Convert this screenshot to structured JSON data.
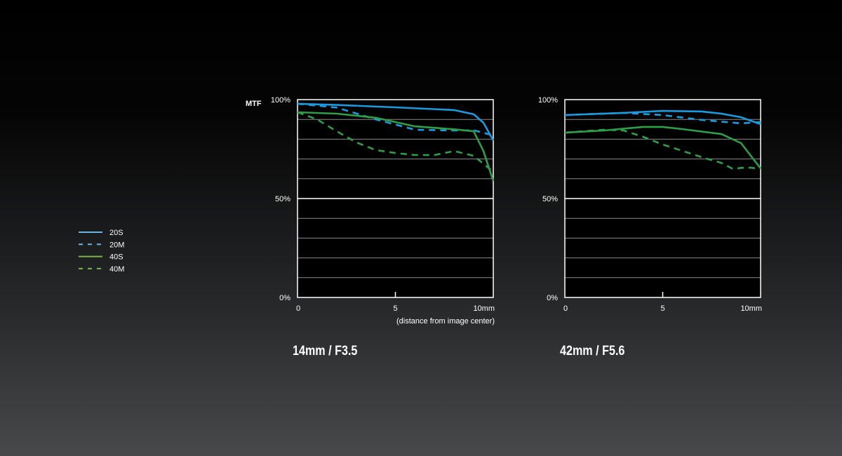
{
  "chart_data": [
    {
      "type": "line",
      "title": "14mm / F3.5",
      "ylabel": "MTF",
      "xlabel": "(distance from image center)",
      "xlim": [
        0,
        10
      ],
      "ylim": [
        0,
        100
      ],
      "xticks": [
        "0",
        "5",
        "10mm"
      ],
      "yticks": [
        "0%",
        "50%",
        "100%"
      ],
      "grid": true,
      "series": [
        {
          "name": "20S",
          "style": "solid",
          "color": "#1a9be0",
          "x": [
            0,
            2,
            5,
            8,
            9,
            9.5,
            10
          ],
          "y": [
            97.9,
            97.3,
            96.1,
            94.7,
            92.6,
            88.3,
            79.4
          ]
        },
        {
          "name": "20M",
          "style": "dashed",
          "color": "#1a9be0",
          "x": [
            0,
            2,
            4,
            6,
            8,
            9,
            10
          ],
          "y": [
            97.9,
            96,
            90,
            84.8,
            84.4,
            84.5,
            81.9
          ]
        },
        {
          "name": "40S",
          "style": "solid",
          "color": "#2e9e48",
          "x": [
            0,
            2,
            4,
            6,
            8,
            9,
            9.5,
            10
          ],
          "y": [
            93.6,
            92.9,
            90.8,
            86.5,
            85,
            84,
            74,
            58.9
          ]
        },
        {
          "name": "40M",
          "style": "dashed",
          "color": "#2e9e48",
          "x": [
            0,
            1,
            2,
            3,
            4,
            5,
            6,
            7,
            8,
            9,
            10
          ],
          "y": [
            93.6,
            90,
            84,
            78.4,
            74.5,
            73,
            72,
            72,
            74,
            71.6,
            63.5
          ]
        }
      ]
    },
    {
      "type": "line",
      "title": "42mm / F5.6",
      "xlim": [
        0,
        10
      ],
      "ylim": [
        0,
        100
      ],
      "xticks": [
        "0",
        "5",
        "10mm"
      ],
      "yticks": [
        "0%",
        "50%",
        "100%"
      ],
      "grid": true,
      "series": [
        {
          "name": "20S",
          "style": "solid",
          "color": "#1a9be0",
          "x": [
            0,
            3,
            5,
            7,
            8,
            9,
            10
          ],
          "y": [
            92.2,
            93.3,
            94.3,
            94,
            92.9,
            91.1,
            87.6
          ]
        },
        {
          "name": "20M",
          "style": "dashed",
          "color": "#1a9be0",
          "x": [
            0,
            3,
            5,
            7,
            9,
            10
          ],
          "y": [
            92.2,
            93.3,
            92.2,
            89.7,
            88,
            88.7
          ]
        },
        {
          "name": "40S",
          "style": "solid",
          "color": "#2e9e48",
          "x": [
            0,
            2,
            4,
            5,
            6,
            8,
            9,
            10
          ],
          "y": [
            83.3,
            84.4,
            86.2,
            86.2,
            85.1,
            82.6,
            78,
            65.2
          ]
        },
        {
          "name": "40M",
          "style": "dashed",
          "color": "#2e9e48",
          "x": [
            0,
            2,
            3,
            4,
            5,
            6,
            7,
            8,
            8.6,
            9,
            9.5,
            10
          ],
          "y": [
            83.3,
            84.8,
            84.4,
            81.2,
            77.3,
            74.1,
            70.9,
            68,
            64.9,
            65.5,
            65.6,
            64.9
          ]
        }
      ]
    }
  ],
  "legend": [
    {
      "label": "20S",
      "style": "solid",
      "color": "#6ab4e8"
    },
    {
      "label": "20M",
      "style": "dashed",
      "color": "#6ab4e8"
    },
    {
      "label": "40S",
      "style": "solid",
      "color": "#7ab648"
    },
    {
      "label": "40M",
      "style": "dashed",
      "color": "#7ab648"
    }
  ]
}
